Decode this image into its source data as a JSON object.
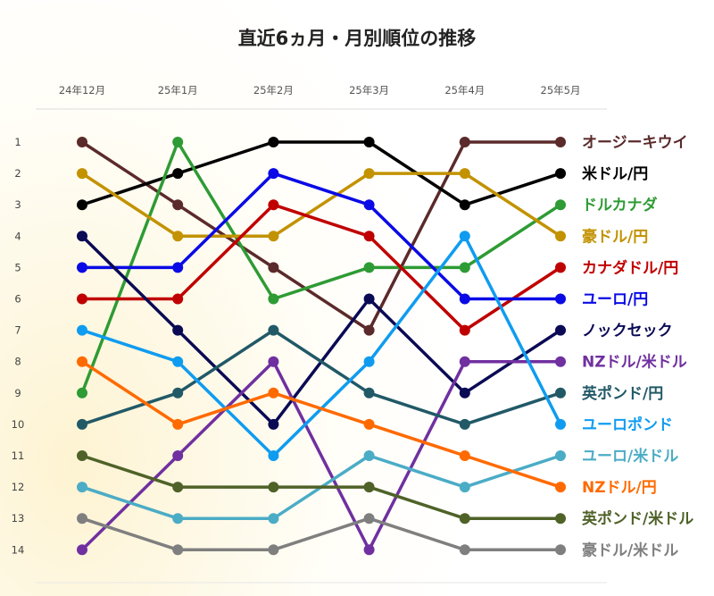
{
  "chart_data": {
    "type": "line",
    "title": "直近6ヵ月・月別順位の推移",
    "categories": [
      "24年12月",
      "25年1月",
      "25年2月",
      "25年3月",
      "25年4月",
      "25年5月"
    ],
    "yticks": [
      1,
      2,
      3,
      4,
      5,
      6,
      7,
      8,
      9,
      10,
      11,
      12,
      13,
      14
    ],
    "ylim": [
      1,
      14
    ],
    "y_inverted": true,
    "grid": false,
    "legend": "right-end labels",
    "series": [
      {
        "name": "オージーキウイ",
        "color": "#5b2a2a",
        "values": [
          1,
          3,
          5,
          7,
          1,
          1
        ]
      },
      {
        "name": "米ドル/円",
        "color": "#000000",
        "values": [
          3,
          2,
          1,
          1,
          3,
          2
        ]
      },
      {
        "name": "ドルカナダ",
        "color": "#2e9b34",
        "values": [
          9,
          1,
          6,
          5,
          5,
          3
        ]
      },
      {
        "name": "豪ドル/円",
        "color": "#c29200",
        "values": [
          2,
          4,
          4,
          2,
          2,
          4
        ]
      },
      {
        "name": "カナダドル/円",
        "color": "#c00000",
        "values": [
          6,
          6,
          3,
          4,
          7,
          5
        ]
      },
      {
        "name": "ユーロ/円",
        "color": "#0a0ae6",
        "values": [
          5,
          5,
          2,
          3,
          6,
          6
        ]
      },
      {
        "name": "ノックセック",
        "color": "#0a0a55",
        "values": [
          4,
          7,
          10,
          6,
          9,
          7
        ]
      },
      {
        "name": "NZドル/米ドル",
        "color": "#7030a0",
        "values": [
          14,
          11,
          8,
          14,
          8,
          8
        ]
      },
      {
        "name": "英ポンド/円",
        "color": "#215967",
        "values": [
          10,
          9,
          7,
          9,
          10,
          9
        ]
      },
      {
        "name": "ユーロポンド",
        "color": "#0f9cf0",
        "values": [
          7,
          8,
          11,
          8,
          4,
          10
        ]
      },
      {
        "name": "ユーロ/米ドル",
        "color": "#4bacc6",
        "values": [
          12,
          13,
          13,
          11,
          12,
          11
        ]
      },
      {
        "name": "NZドル/円",
        "color": "#ff6a00",
        "values": [
          8,
          10,
          9,
          10,
          11,
          12
        ]
      },
      {
        "name": "英ポンド/米ドル",
        "color": "#4f6228",
        "values": [
          11,
          12,
          12,
          12,
          13,
          13
        ]
      },
      {
        "name": "豪ドル/米ドル",
        "color": "#7f7f7f",
        "values": [
          13,
          14,
          14,
          13,
          14,
          14
        ]
      }
    ]
  }
}
